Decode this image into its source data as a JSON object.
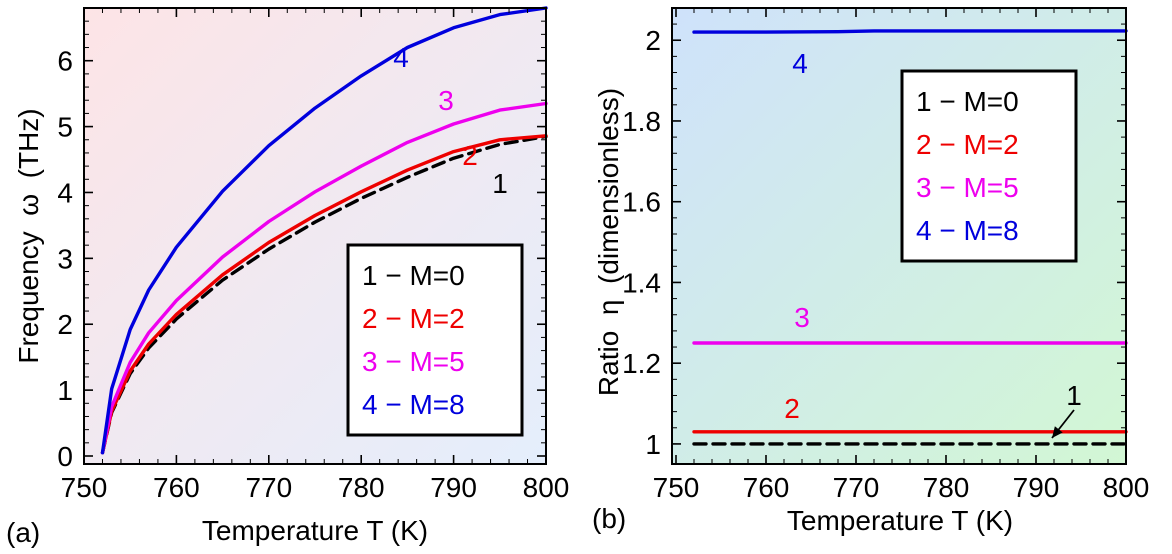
{
  "chart_data": [
    {
      "type": "line",
      "panel_label": "(a)",
      "xlabel": "Temperature T (K)",
      "ylabel": "Frequency  ω  (THz)",
      "xlim": [
        750,
        800
      ],
      "ylim": [
        0,
        6.8
      ],
      "xticks": [
        750,
        760,
        770,
        780,
        790,
        800
      ],
      "yticks": [
        0,
        1,
        2,
        3,
        4,
        5,
        6
      ],
      "grid": false,
      "legend_position": "bottom-right",
      "series": [
        {
          "name": "1 − M=0",
          "curve_label": "1",
          "color": "#000000",
          "dash": true,
          "x": [
            752,
            753,
            755,
            757,
            760,
            765,
            770,
            775,
            780,
            785,
            790,
            795,
            800
          ],
          "y": [
            0.05,
            0.66,
            1.25,
            1.64,
            2.08,
            2.67,
            3.14,
            3.55,
            3.91,
            4.23,
            4.52,
            4.73,
            4.85
          ]
        },
        {
          "name": "2 − M=2",
          "curve_label": "2",
          "color": "#ee0000",
          "dash": false,
          "x": [
            752,
            753,
            755,
            757,
            760,
            765,
            770,
            775,
            780,
            785,
            790,
            795,
            800
          ],
          "y": [
            0.05,
            0.68,
            1.29,
            1.7,
            2.15,
            2.75,
            3.24,
            3.65,
            4.01,
            4.34,
            4.62,
            4.8,
            4.86
          ]
        },
        {
          "name": "3 − M=5",
          "curve_label": "3",
          "color": "#ee00ee",
          "dash": false,
          "x": [
            752,
            753,
            755,
            757,
            760,
            765,
            770,
            775,
            780,
            785,
            790,
            795,
            800
          ],
          "y": [
            0.05,
            0.75,
            1.42,
            1.87,
            2.36,
            3.02,
            3.56,
            4.01,
            4.4,
            4.76,
            5.04,
            5.25,
            5.35
          ]
        },
        {
          "name": "4 − M=8",
          "curve_label": "4",
          "color": "#0000dd",
          "dash": false,
          "x": [
            752,
            753,
            755,
            757,
            760,
            765,
            770,
            775,
            780,
            785,
            790,
            795,
            800
          ],
          "y": [
            0.05,
            1.02,
            1.92,
            2.52,
            3.17,
            4.02,
            4.71,
            5.28,
            5.77,
            6.2,
            6.5,
            6.7,
            6.8
          ]
        }
      ]
    },
    {
      "type": "line",
      "panel_label": "(b)",
      "xlabel": "Temperature T (K)",
      "ylabel": "Ratio  η  (dimensionless)",
      "xlim": [
        750,
        800
      ],
      "ylim": [
        0.98,
        2.06
      ],
      "xticks": [
        750,
        760,
        770,
        780,
        790,
        800
      ],
      "yticks": [
        1,
        1.2,
        1.4,
        1.6,
        1.8,
        2
      ],
      "ytick_labels": [
        "1",
        "1.2",
        "1.4",
        "1.6",
        "1.8",
        "2"
      ],
      "grid": false,
      "legend_position": "top-right",
      "series": [
        {
          "name": "1 − M=0",
          "curve_label": "1",
          "color": "#000000",
          "dash": true,
          "x": [
            752,
            800
          ],
          "y": [
            1.0,
            1.0
          ]
        },
        {
          "name": "2 − M=2",
          "curve_label": "2",
          "color": "#ee0000",
          "dash": false,
          "x": [
            752,
            800
          ],
          "y": [
            1.03,
            1.03
          ]
        },
        {
          "name": "3 − M=5",
          "curve_label": "3",
          "color": "#ee00ee",
          "dash": false,
          "x": [
            752,
            800
          ],
          "y": [
            1.25,
            1.25
          ]
        },
        {
          "name": "4 − M=8",
          "curve_label": "4",
          "color": "#0000dd",
          "dash": false,
          "x": [
            752,
            760,
            768,
            772,
            780,
            790,
            800
          ],
          "y": [
            2.02,
            2.02,
            2.021,
            2.023,
            2.023,
            2.023,
            2.023
          ]
        }
      ]
    }
  ]
}
